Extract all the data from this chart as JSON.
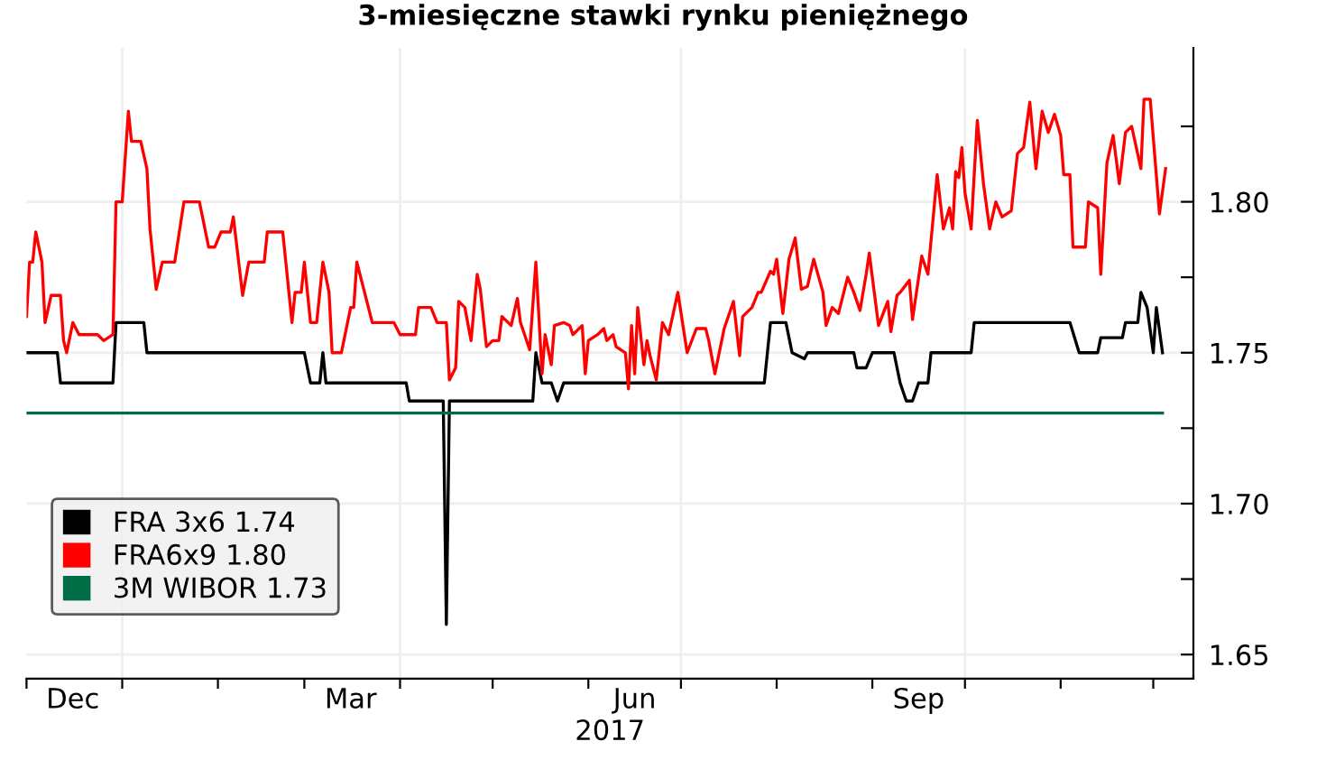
{
  "chart_data": {
    "type": "line",
    "title": "3-miesięczne stawki rynku pieniężnego",
    "xlabel": "2017",
    "xlim": [
      "2016-12-01",
      "2017-12-14"
    ],
    "xticks": [
      {
        "value": "2016-12-01",
        "label": null
      },
      {
        "value": "2016-12-16",
        "label": "Dec"
      },
      {
        "value": "2017-01-01",
        "label": null
      },
      {
        "value": "2017-02-01",
        "label": null
      },
      {
        "value": "2017-03-01",
        "label": null
      },
      {
        "value": "2017-03-16",
        "label": "Mar"
      },
      {
        "value": "2017-04-01",
        "label": null
      },
      {
        "value": "2017-05-01",
        "label": null
      },
      {
        "value": "2017-06-01",
        "label": null
      },
      {
        "value": "2017-06-16",
        "label": "Jun"
      },
      {
        "value": "2017-07-01",
        "label": null
      },
      {
        "value": "2017-08-01",
        "label": null
      },
      {
        "value": "2017-09-01",
        "label": null
      },
      {
        "value": "2017-09-16",
        "label": "Sep"
      },
      {
        "value": "2017-10-01",
        "label": null
      },
      {
        "value": "2017-11-01",
        "label": null
      },
      {
        "value": "2017-12-01",
        "label": null
      }
    ],
    "ylim": [
      1.642,
      1.851
    ],
    "yticks": [
      {
        "value": 1.65,
        "label": "1.65"
      },
      {
        "value": 1.675,
        "label": null
      },
      {
        "value": 1.7,
        "label": "1.70"
      },
      {
        "value": 1.725,
        "label": null
      },
      {
        "value": 1.75,
        "label": "1.75"
      },
      {
        "value": 1.775,
        "label": null
      },
      {
        "value": 1.8,
        "label": "1.80"
      },
      {
        "value": 1.825,
        "label": null
      }
    ],
    "grid": "y",
    "legend": "bottom left",
    "marker": "none",
    "line_style": "solid",
    "ref_lines": [
      {
        "axis": "x",
        "value": "2017-01-01",
        "color": "#eeeeee"
      },
      {
        "axis": "x",
        "value": "2017-04-01",
        "color": "#eeeeee"
      },
      {
        "axis": "x",
        "value": "2017-07-01",
        "color": "#eeeeee"
      },
      {
        "axis": "x",
        "value": "2017-10-01",
        "color": "#eeeeee"
      }
    ],
    "series": [
      {
        "name": "FRA 3x6 1.74",
        "color": "#000000",
        "x": [
          "2016-12-01",
          "2016-12-11",
          "2016-12-12",
          "2016-12-29",
          "2016-12-30",
          "2017-01-08",
          "2017-01-09",
          "2017-03-01",
          "2017-03-03",
          "2017-03-06",
          "2017-03-07",
          "2017-03-08",
          "2017-04-03",
          "2017-04-04",
          "2017-04-15",
          "2017-04-16",
          "2017-04-17",
          "2017-05-14",
          "2017-05-15",
          "2017-05-17",
          "2017-05-20",
          "2017-05-22",
          "2017-05-24",
          "2017-07-28",
          "2017-07-30",
          "2017-08-04",
          "2017-08-06",
          "2017-08-10",
          "2017-08-11",
          "2017-08-26",
          "2017-08-27",
          "2017-08-30",
          "2017-09-01",
          "2017-09-08",
          "2017-09-10",
          "2017-09-12",
          "2017-09-14",
          "2017-09-16",
          "2017-09-19",
          "2017-09-20",
          "2017-10-03",
          "2017-10-04",
          "2017-11-04",
          "2017-11-07",
          "2017-11-13",
          "2017-11-14",
          "2017-11-21",
          "2017-11-22",
          "2017-11-26",
          "2017-11-27",
          "2017-11-29",
          "2017-12-01",
          "2017-12-02",
          "2017-12-04"
        ],
        "values": [
          1.75,
          1.75,
          1.74,
          1.74,
          1.76,
          1.76,
          1.75,
          1.75,
          1.74,
          1.74,
          1.75,
          1.74,
          1.74,
          1.734,
          1.734,
          1.66,
          1.734,
          1.734,
          1.75,
          1.74,
          1.74,
          1.734,
          1.74,
          1.74,
          1.76,
          1.76,
          1.75,
          1.748,
          1.75,
          1.75,
          1.745,
          1.745,
          1.75,
          1.75,
          1.74,
          1.734,
          1.734,
          1.74,
          1.74,
          1.75,
          1.75,
          1.76,
          1.76,
          1.75,
          1.75,
          1.755,
          1.755,
          1.76,
          1.76,
          1.77,
          1.765,
          1.75,
          1.765,
          1.75
        ]
      },
      {
        "name": "FRA6x9 1.80",
        "color": "#ff0000",
        "x": [
          "2016-12-01",
          "2016-12-02",
          "2016-12-03",
          "2016-12-04",
          "2016-12-06",
          "2016-12-07",
          "2016-12-09",
          "2016-12-12",
          "2016-12-13",
          "2016-12-14",
          "2016-12-16",
          "2016-12-18",
          "2016-12-24",
          "2016-12-26",
          "2016-12-29",
          "2016-12-30",
          "2017-01-01",
          "2017-01-03",
          "2017-01-04",
          "2017-01-07",
          "2017-01-09",
          "2017-01-10",
          "2017-01-12",
          "2017-01-14",
          "2017-01-18",
          "2017-01-21",
          "2017-01-26",
          "2017-01-29",
          "2017-01-31",
          "2017-02-02",
          "2017-02-05",
          "2017-02-06",
          "2017-02-09",
          "2017-02-11",
          "2017-02-16",
          "2017-02-17",
          "2017-02-22",
          "2017-02-25",
          "2017-02-26",
          "2017-02-28",
          "2017-03-01",
          "2017-03-03",
          "2017-03-05",
          "2017-03-07",
          "2017-03-09",
          "2017-03-10",
          "2017-03-13",
          "2017-03-16",
          "2017-03-17",
          "2017-03-18",
          "2017-03-23",
          "2017-03-30",
          "2017-04-01",
          "2017-04-06",
          "2017-04-07",
          "2017-04-11",
          "2017-04-13",
          "2017-04-16",
          "2017-04-17",
          "2017-04-19",
          "2017-04-20",
          "2017-04-22",
          "2017-04-24",
          "2017-04-26",
          "2017-04-27",
          "2017-04-29",
          "2017-05-01",
          "2017-05-03",
          "2017-05-04",
          "2017-05-07",
          "2017-05-09",
          "2017-05-10",
          "2017-05-13",
          "2017-05-15",
          "2017-05-17",
          "2017-05-18",
          "2017-05-20",
          "2017-05-21",
          "2017-05-24",
          "2017-05-26",
          "2017-05-27",
          "2017-05-30",
          "2017-05-31",
          "2017-06-01",
          "2017-06-04",
          "2017-06-06",
          "2017-06-07",
          "2017-06-09",
          "2017-06-10",
          "2017-06-13",
          "2017-06-14",
          "2017-06-15",
          "2017-06-16",
          "2017-06-17",
          "2017-06-19",
          "2017-06-20",
          "2017-06-21",
          "2017-06-23",
          "2017-06-25",
          "2017-06-27",
          "2017-06-30",
          "2017-07-03",
          "2017-07-06",
          "2017-07-09",
          "2017-07-10",
          "2017-07-12",
          "2017-07-15",
          "2017-07-18",
          "2017-07-20",
          "2017-07-21",
          "2017-07-24",
          "2017-07-26",
          "2017-07-27",
          "2017-07-30",
          "2017-07-31",
          "2017-08-01",
          "2017-08-03",
          "2017-08-05",
          "2017-08-07",
          "2017-08-09",
          "2017-08-11",
          "2017-08-13",
          "2017-08-16",
          "2017-08-17",
          "2017-08-19",
          "2017-08-21",
          "2017-08-24",
          "2017-08-26",
          "2017-08-28",
          "2017-08-30",
          "2017-08-31",
          "2017-09-03",
          "2017-09-06",
          "2017-09-07",
          "2017-09-09",
          "2017-09-10",
          "2017-09-13",
          "2017-09-14",
          "2017-09-17",
          "2017-09-19",
          "2017-09-22",
          "2017-09-24",
          "2017-09-26",
          "2017-09-27",
          "2017-09-28",
          "2017-09-29",
          "2017-09-30",
          "2017-10-01",
          "2017-10-03",
          "2017-10-05",
          "2017-10-07",
          "2017-10-09",
          "2017-10-11",
          "2017-10-13",
          "2017-10-16",
          "2017-10-18",
          "2017-10-20",
          "2017-10-22",
          "2017-10-24",
          "2017-10-26",
          "2017-10-28",
          "2017-10-30",
          "2017-11-01",
          "2017-11-02",
          "2017-11-04",
          "2017-11-05",
          "2017-11-09",
          "2017-11-10",
          "2017-11-13",
          "2017-11-14",
          "2017-11-16",
          "2017-11-18",
          "2017-11-20",
          "2017-11-22",
          "2017-11-24",
          "2017-11-27",
          "2017-11-28",
          "2017-11-30",
          "2017-12-03",
          "2017-12-05"
        ],
        "values": [
          1.762,
          1.78,
          1.78,
          1.79,
          1.78,
          1.76,
          1.769,
          1.769,
          1.754,
          1.75,
          1.76,
          1.756,
          1.756,
          1.754,
          1.756,
          1.8,
          1.8,
          1.83,
          1.82,
          1.82,
          1.811,
          1.791,
          1.771,
          1.78,
          1.78,
          1.8,
          1.8,
          1.785,
          1.785,
          1.79,
          1.79,
          1.795,
          1.769,
          1.78,
          1.78,
          1.79,
          1.79,
          1.76,
          1.77,
          1.77,
          1.78,
          1.76,
          1.76,
          1.78,
          1.77,
          1.75,
          1.75,
          1.765,
          1.765,
          1.78,
          1.76,
          1.76,
          1.756,
          1.756,
          1.765,
          1.765,
          1.76,
          1.76,
          1.741,
          1.745,
          1.767,
          1.765,
          1.754,
          1.776,
          1.771,
          1.752,
          1.754,
          1.754,
          1.762,
          1.759,
          1.768,
          1.76,
          1.751,
          1.78,
          1.743,
          1.756,
          1.746,
          1.759,
          1.76,
          1.759,
          1.756,
          1.759,
          1.743,
          1.754,
          1.756,
          1.758,
          1.754,
          1.756,
          1.752,
          1.75,
          1.738,
          1.759,
          1.743,
          1.765,
          1.746,
          1.754,
          1.749,
          1.741,
          1.76,
          1.756,
          1.77,
          1.75,
          1.758,
          1.758,
          1.754,
          1.743,
          1.758,
          1.767,
          1.749,
          1.762,
          1.765,
          1.77,
          1.77,
          1.777,
          1.776,
          1.781,
          1.763,
          1.781,
          1.788,
          1.771,
          1.772,
          1.781,
          1.77,
          1.759,
          1.765,
          1.763,
          1.775,
          1.77,
          1.764,
          1.776,
          1.783,
          1.759,
          1.767,
          1.757,
          1.769,
          1.77,
          1.774,
          1.761,
          1.782,
          1.776,
          1.809,
          1.791,
          1.798,
          1.791,
          1.81,
          1.808,
          1.818,
          1.803,
          1.791,
          1.827,
          1.806,
          1.791,
          1.8,
          1.795,
          1.797,
          1.816,
          1.818,
          1.833,
          1.811,
          1.83,
          1.823,
          1.829,
          1.822,
          1.809,
          1.809,
          1.785,
          1.785,
          1.8,
          1.798,
          1.776,
          1.813,
          1.822,
          1.806,
          1.823,
          1.825,
          1.811,
          1.834,
          1.834,
          1.796,
          1.811
        ]
      },
      {
        "name": "3M WIBOR 1.73",
        "color": "#006d46",
        "x": [
          "2016-12-01",
          "2017-12-04"
        ],
        "values": [
          1.73,
          1.73
        ]
      }
    ]
  }
}
